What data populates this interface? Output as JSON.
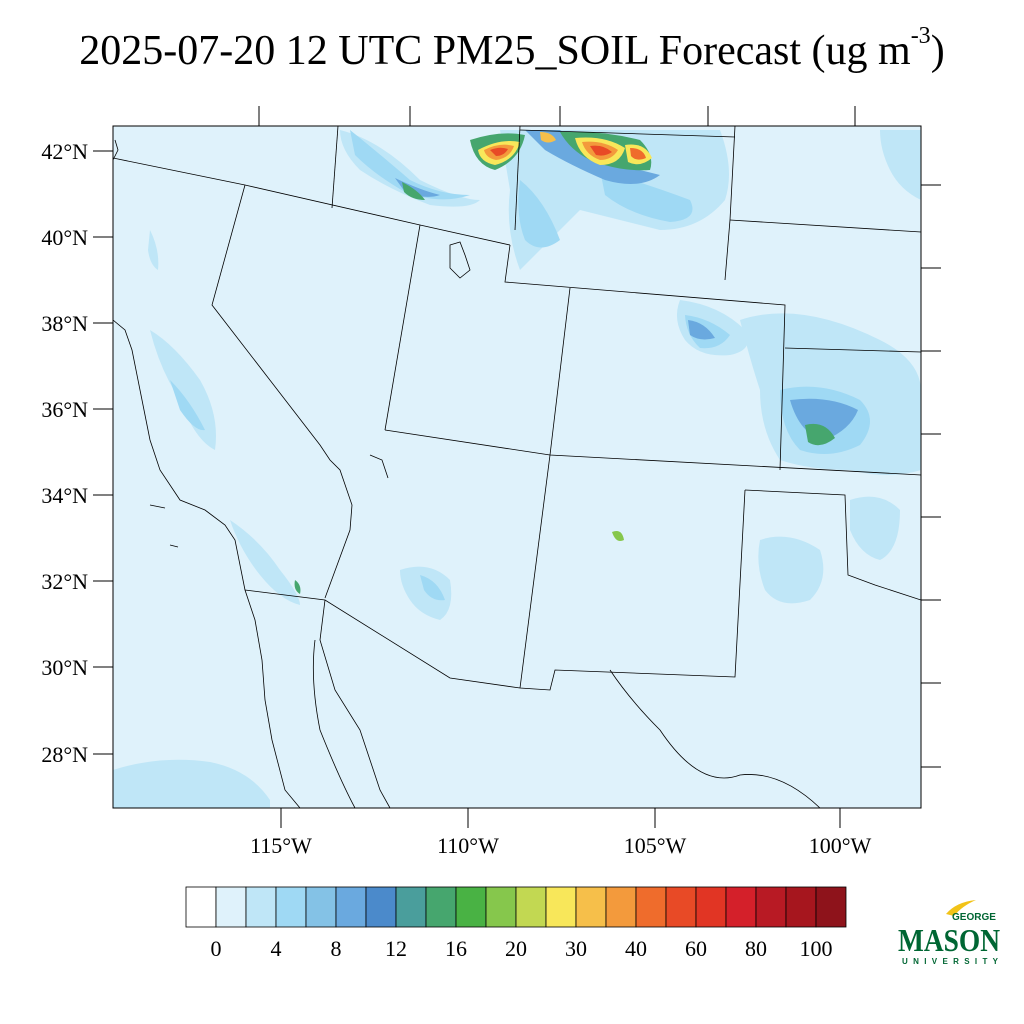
{
  "title": {
    "main": "2025-07-20 12 UTC PM25_SOIL Forecast (ug m",
    "exponent": "-3",
    "close": ")"
  },
  "map": {
    "lat_labels": [
      "42°N",
      "40°N",
      "38°N",
      "36°N",
      "34°N",
      "32°N",
      "30°N",
      "28°N"
    ],
    "lon_labels": [
      "115°W",
      "110°W",
      "105°W",
      "100°W"
    ]
  },
  "colorbar": {
    "labels": [
      "0",
      "4",
      "8",
      "12",
      "16",
      "20",
      "30",
      "40",
      "60",
      "80",
      "100"
    ],
    "colors": [
      "#ffffff",
      "#dff2fb",
      "#bfe6f7",
      "#9fd9f4",
      "#84c2e6",
      "#6aa9df",
      "#4b8acb",
      "#4a9e9c",
      "#46a66e",
      "#49b244",
      "#86c74c",
      "#c2d852",
      "#f8e75a",
      "#f6bf4a",
      "#f39a3c",
      "#ef6c2c",
      "#e84a26",
      "#e13524",
      "#d4202a",
      "#b81a24",
      "#a6161e",
      "#8e131b"
    ]
  },
  "logo": {
    "line1": "GEORGE",
    "line2": "MASON",
    "line3": "UNIVERSITY",
    "color": "#006633",
    "accent": "#f2c318"
  },
  "colors": {
    "background_field": "#dff2fb"
  }
}
